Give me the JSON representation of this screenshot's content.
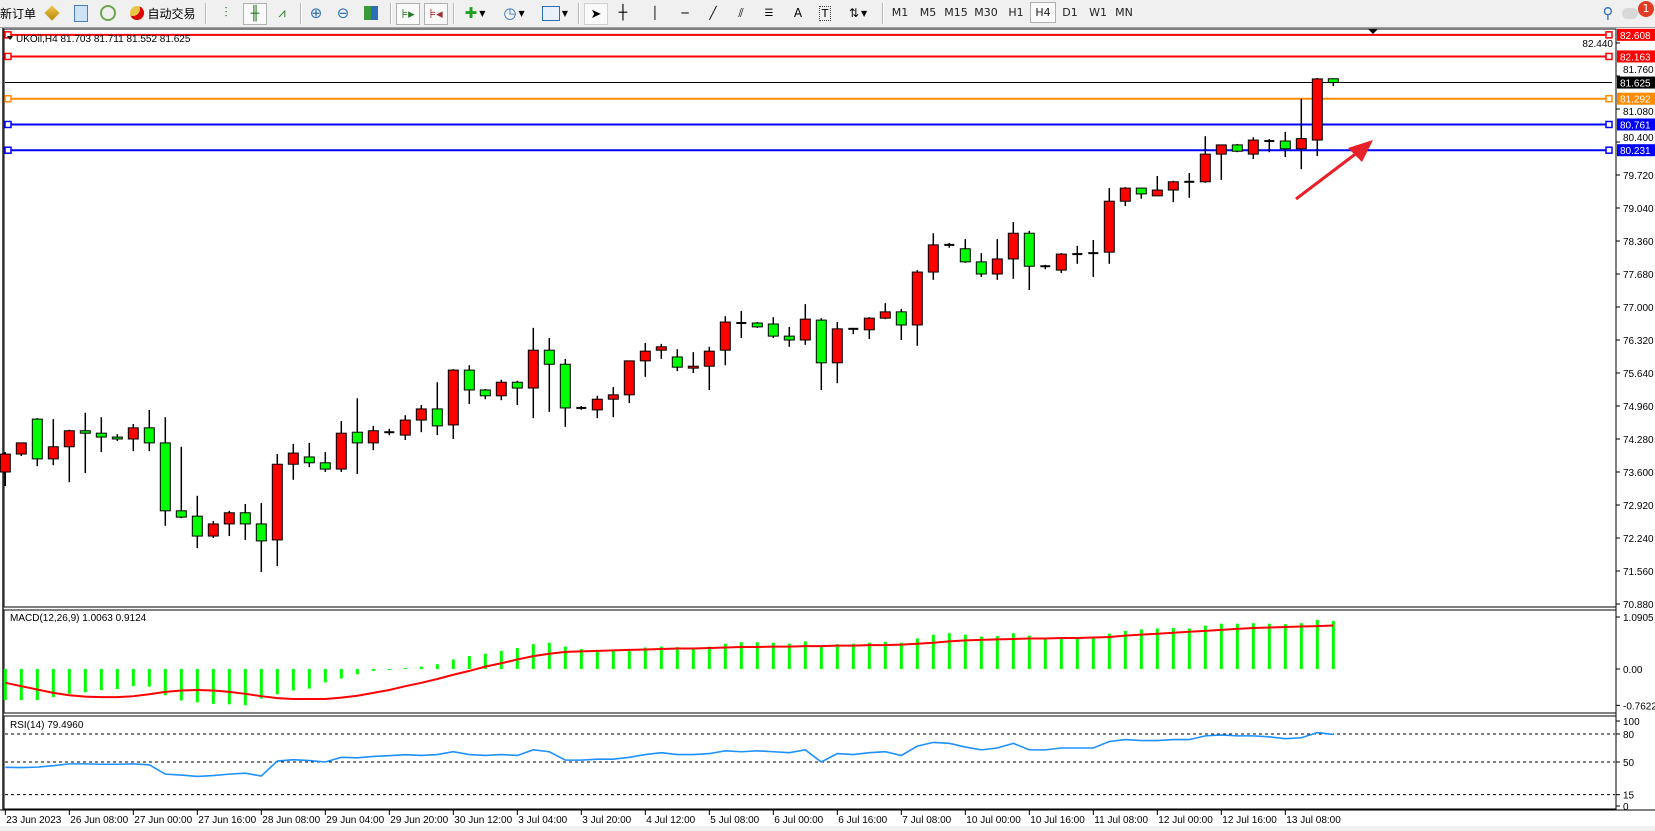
{
  "toolbar": {
    "new_order_label": "新订单",
    "auto_trading_label": "自动交易",
    "timeframes": [
      "M1",
      "M5",
      "M15",
      "M30",
      "H1",
      "H4",
      "D1",
      "W1",
      "MN"
    ],
    "active_timeframe": "H4",
    "notification_count": "1"
  },
  "chart": {
    "title": "UKOil,H4  81.703 81.711 81.552 81.625",
    "symbol": "UKOil",
    "timeframe": "H4",
    "colors": {
      "bull": "#ff0000",
      "bear": "#00ff00",
      "background": "#ffffff"
    },
    "price_ticks": [
      "82.440",
      "81.760",
      "81.080",
      "80.400",
      "79.720",
      "79.040",
      "78.360",
      "77.680",
      "77.000",
      "76.320",
      "75.640",
      "74.960",
      "74.280",
      "73.600",
      "72.920",
      "72.240",
      "71.560",
      "70.880"
    ],
    "levels": [
      {
        "price": 82.608,
        "label": "82.608",
        "color": "#ff0000"
      },
      {
        "price": 82.163,
        "label": "82.163",
        "color": "#ff0000"
      },
      {
        "price": 81.292,
        "label": "81.292",
        "color": "#ff8c00"
      },
      {
        "price": 80.761,
        "label": "80.761",
        "color": "#0000ff"
      },
      {
        "price": 80.231,
        "label": "80.231",
        "color": "#0000ff"
      }
    ],
    "current_price": {
      "price": 81.625,
      "label": "81.625",
      "color": "#000000"
    },
    "time_labels": [
      "23 Jun 2023",
      "26 Jun 08:00",
      "27 Jun 00:00",
      "27 Jun 16:00",
      "28 Jun 08:00",
      "29 Jun 04:00",
      "29 Jun 20:00",
      "30 Jun 12:00",
      "3 Jul 04:00",
      "3 Jul 20:00",
      "4 Jul 12:00",
      "5 Jul 08:00",
      "6 Jul 00:00",
      "6 Jul 16:00",
      "7 Jul 08:00",
      "10 Jul 00:00",
      "10 Jul 16:00",
      "11 Jul 08:00",
      "12 Jul 00:00",
      "12 Jul 16:00",
      "13 Jul 08:00"
    ],
    "annotation": {
      "type": "arrow",
      "color": "#e8202a"
    }
  },
  "chart_data": {
    "type": "candlestick",
    "ylim": [
      70.8,
      82.75
    ],
    "ohlc": [
      [
        73.6,
        74.01,
        73.31,
        73.97
      ],
      [
        73.97,
        74.2,
        73.93,
        74.2
      ],
      [
        74.69,
        74.71,
        73.72,
        73.87
      ],
      [
        73.87,
        74.69,
        73.74,
        74.12
      ],
      [
        74.12,
        74.47,
        73.39,
        74.45
      ],
      [
        74.45,
        74.82,
        73.58,
        74.4
      ],
      [
        74.4,
        74.73,
        74.01,
        74.32
      ],
      [
        74.32,
        74.38,
        74.24,
        74.28
      ],
      [
        74.28,
        74.59,
        74.03,
        74.51
      ],
      [
        74.51,
        74.88,
        74.03,
        74.2
      ],
      [
        74.2,
        74.73,
        72.49,
        72.8
      ],
      [
        72.8,
        74.12,
        72.65,
        72.67
      ],
      [
        72.69,
        73.11,
        72.03,
        72.28
      ],
      [
        72.28,
        72.59,
        72.24,
        72.53
      ],
      [
        72.53,
        72.8,
        72.28,
        72.76
      ],
      [
        72.76,
        72.94,
        72.2,
        72.53
      ],
      [
        72.53,
        72.96,
        71.54,
        72.18
      ],
      [
        72.2,
        73.97,
        71.66,
        73.76
      ],
      [
        73.76,
        74.18,
        73.44,
        73.99
      ],
      [
        73.91,
        74.2,
        73.7,
        73.79
      ],
      [
        73.79,
        74.01,
        73.6,
        73.66
      ],
      [
        73.66,
        74.65,
        73.6,
        74.4
      ],
      [
        74.42,
        75.12,
        73.56,
        74.2
      ],
      [
        74.2,
        74.55,
        74.05,
        74.45
      ],
      [
        74.42,
        74.49,
        74.36,
        74.42
      ],
      [
        74.36,
        74.77,
        74.26,
        74.67
      ],
      [
        74.67,
        74.98,
        74.42,
        74.9
      ],
      [
        74.9,
        75.45,
        74.36,
        74.55
      ],
      [
        74.57,
        75.72,
        74.28,
        75.7
      ],
      [
        75.7,
        75.8,
        75.0,
        75.29
      ],
      [
        75.29,
        75.31,
        75.1,
        75.17
      ],
      [
        75.17,
        75.5,
        75.08,
        75.45
      ],
      [
        75.45,
        75.48,
        74.98,
        75.33
      ],
      [
        75.33,
        76.57,
        74.71,
        76.11
      ],
      [
        76.11,
        76.36,
        74.84,
        75.82
      ],
      [
        75.82,
        75.93,
        74.53,
        74.92
      ],
      [
        74.92,
        74.96,
        74.88,
        74.92
      ],
      [
        74.88,
        75.17,
        74.71,
        75.1
      ],
      [
        75.1,
        75.35,
        74.73,
        75.19
      ],
      [
        75.19,
        75.89,
        75.02,
        75.89
      ],
      [
        75.89,
        76.26,
        75.56,
        76.09
      ],
      [
        76.11,
        76.24,
        75.93,
        76.18
      ],
      [
        75.97,
        76.13,
        75.68,
        75.76
      ],
      [
        75.74,
        76.07,
        75.64,
        75.78
      ],
      [
        75.78,
        76.18,
        75.29,
        76.09
      ],
      [
        76.11,
        76.81,
        75.8,
        76.69
      ],
      [
        76.67,
        76.92,
        76.36,
        76.67
      ],
      [
        76.67,
        76.69,
        76.57,
        76.59
      ],
      [
        76.65,
        76.79,
        76.36,
        76.4
      ],
      [
        76.4,
        76.59,
        76.18,
        76.32
      ],
      [
        76.32,
        77.06,
        76.22,
        76.75
      ],
      [
        76.73,
        76.77,
        75.29,
        75.85
      ],
      [
        75.85,
        76.69,
        75.43,
        76.55
      ],
      [
        76.55,
        76.57,
        76.44,
        76.55
      ],
      [
        76.53,
        76.79,
        76.34,
        76.77
      ],
      [
        76.77,
        77.08,
        76.75,
        76.9
      ],
      [
        76.9,
        76.96,
        76.32,
        76.63
      ],
      [
        76.63,
        77.76,
        76.2,
        77.72
      ],
      [
        77.72,
        78.52,
        77.56,
        78.28
      ],
      [
        78.28,
        78.32,
        78.22,
        78.28
      ],
      [
        78.2,
        78.4,
        77.91,
        77.93
      ],
      [
        77.93,
        78.11,
        77.62,
        77.68
      ],
      [
        77.68,
        78.4,
        77.56,
        77.99
      ],
      [
        77.99,
        78.75,
        77.58,
        78.52
      ],
      [
        78.52,
        78.57,
        77.35,
        77.84
      ],
      [
        77.84,
        77.87,
        77.78,
        77.84
      ],
      [
        77.76,
        78.11,
        77.7,
        78.09
      ],
      [
        78.09,
        78.26,
        77.89,
        78.09
      ],
      [
        78.11,
        78.38,
        77.62,
        78.11
      ],
      [
        78.13,
        79.45,
        77.89,
        79.18
      ],
      [
        79.18,
        79.47,
        79.08,
        79.45
      ],
      [
        79.45,
        79.45,
        79.23,
        79.33
      ],
      [
        79.29,
        79.7,
        79.29,
        79.41
      ],
      [
        79.41,
        79.6,
        79.16,
        79.58
      ],
      [
        79.58,
        79.76,
        79.25,
        79.58
      ],
      [
        79.58,
        80.52,
        79.56,
        80.15
      ],
      [
        80.15,
        80.34,
        79.62,
        80.34
      ],
      [
        80.34,
        80.36,
        80.19,
        80.21
      ],
      [
        80.15,
        80.5,
        80.05,
        80.44
      ],
      [
        80.42,
        80.46,
        80.19,
        80.42
      ],
      [
        80.42,
        80.61,
        80.09,
        80.26
      ],
      [
        80.26,
        81.29,
        79.84,
        80.47
      ],
      [
        80.44,
        81.72,
        80.11,
        81.7
      ],
      [
        81.703,
        81.711,
        81.552,
        81.625
      ]
    ],
    "macd": {
      "label": "MACD(12,26,9) 1.0063 0.9124",
      "ticks": [
        "1.0905",
        "0.00",
        "-0.7622"
      ],
      "ylim": [
        -0.7622,
        1.0905
      ],
      "histogram_color": "#00ff00",
      "signal_color": "#ff0000",
      "histogram": [
        -0.65,
        -0.65,
        -0.65,
        -0.59,
        -0.52,
        -0.49,
        -0.44,
        -0.42,
        -0.36,
        -0.37,
        -0.55,
        -0.66,
        -0.7,
        -0.73,
        -0.74,
        -0.76,
        -0.62,
        -0.53,
        -0.45,
        -0.41,
        -0.28,
        -0.2,
        -0.11,
        -0.04,
        -0.02,
        0.02,
        0.05,
        0.1,
        0.2,
        0.27,
        0.32,
        0.38,
        0.44,
        0.52,
        0.55,
        0.47,
        0.42,
        0.4,
        0.4,
        0.42,
        0.45,
        0.47,
        0.46,
        0.45,
        0.47,
        0.53,
        0.56,
        0.56,
        0.55,
        0.53,
        0.58,
        0.5,
        0.52,
        0.53,
        0.55,
        0.57,
        0.55,
        0.64,
        0.72,
        0.75,
        0.72,
        0.68,
        0.69,
        0.75,
        0.7,
        0.66,
        0.66,
        0.65,
        0.64,
        0.74,
        0.8,
        0.83,
        0.85,
        0.86,
        0.85,
        0.91,
        0.95,
        0.95,
        0.96,
        0.95,
        0.94,
        0.96,
        1.03,
        1.0063
      ],
      "signal": [
        -0.29,
        -0.36,
        -0.43,
        -0.5,
        -0.55,
        -0.58,
        -0.59,
        -0.59,
        -0.57,
        -0.53,
        -0.48,
        -0.45,
        -0.44,
        -0.45,
        -0.48,
        -0.52,
        -0.57,
        -0.61,
        -0.63,
        -0.63,
        -0.63,
        -0.6,
        -0.56,
        -0.5,
        -0.44,
        -0.36,
        -0.29,
        -0.21,
        -0.12,
        -0.04,
        0.05,
        0.12,
        0.2,
        0.27,
        0.32,
        0.36,
        0.37,
        0.38,
        0.39,
        0.4,
        0.41,
        0.42,
        0.43,
        0.43,
        0.44,
        0.45,
        0.46,
        0.46,
        0.47,
        0.47,
        0.48,
        0.48,
        0.49,
        0.49,
        0.5,
        0.5,
        0.51,
        0.53,
        0.55,
        0.58,
        0.6,
        0.61,
        0.62,
        0.63,
        0.64,
        0.64,
        0.65,
        0.65,
        0.66,
        0.67,
        0.7,
        0.72,
        0.74,
        0.76,
        0.78,
        0.8,
        0.82,
        0.84,
        0.86,
        0.87,
        0.88,
        0.89,
        0.9,
        0.9124
      ]
    },
    "rsi": {
      "label": "RSI(14) 79.4960",
      "ticks": [
        "100",
        "80",
        "50",
        "15",
        "0"
      ],
      "levels": [
        80,
        50,
        15
      ],
      "ylim": [
        0,
        100
      ],
      "color": "#1e90ff",
      "values": [
        44.3,
        44.0,
        44.5,
        46,
        48,
        48,
        47.6,
        47.6,
        48,
        47,
        37,
        36,
        34.5,
        35.5,
        37,
        38,
        35,
        51,
        52.5,
        51.5,
        50,
        55,
        54.5,
        56,
        56.8,
        57.8,
        57,
        58,
        61,
        58,
        57,
        58,
        57,
        63,
        61,
        52,
        52,
        53,
        53,
        55,
        58,
        60,
        58,
        58,
        59,
        62,
        61,
        62,
        61,
        60,
        63,
        50,
        59,
        58,
        60,
        61,
        57,
        67,
        71,
        70,
        66,
        63,
        65,
        70,
        63,
        63,
        65,
        65,
        65,
        72,
        74,
        73,
        73,
        74,
        74,
        78,
        79,
        78,
        78,
        77,
        75,
        76,
        81.5,
        79.496
      ]
    }
  }
}
